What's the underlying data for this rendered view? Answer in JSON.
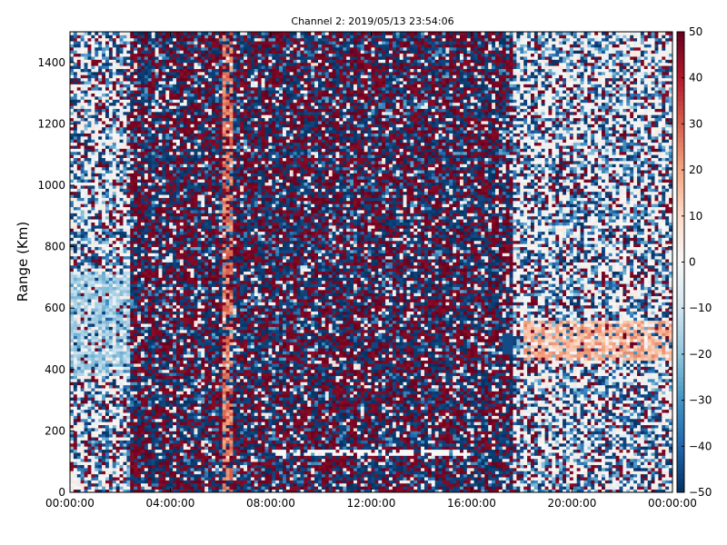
{
  "chart_data": {
    "type": "heatmap",
    "title": "Channel 2: 2019/05/13 23:54:06",
    "xlabel": "",
    "ylabel": "Range (Km)",
    "x_tick_labels": [
      "00:00:00",
      "04:00:00",
      "08:00:00",
      "12:00:00",
      "16:00:00",
      "20:00:00",
      "00:00:00"
    ],
    "x_tick_hours": [
      0,
      4,
      8,
      12,
      16,
      20,
      24
    ],
    "xlim_hours": [
      0,
      24
    ],
    "y_ticks": [
      0,
      200,
      400,
      600,
      800,
      1000,
      1200,
      1400
    ],
    "ylim": [
      0,
      1500
    ],
    "colorbar": {
      "ticks": [
        50,
        40,
        30,
        20,
        10,
        0,
        -10,
        -20,
        -30,
        -40,
        -50
      ],
      "range": [
        -50,
        50
      ],
      "colormap": "RdBu_r",
      "low_color": "#053061",
      "mid_color": "#f7f7f7",
      "high_color": "#67001f"
    },
    "features": [
      {
        "description": "speckled noise dominates 02:30–17:30 across all ranges"
      },
      {
        "description": "warm streak near 06:20",
        "x_hours": 6.3,
        "value_approx": 25
      },
      {
        "description": "lighter regions 00:00–02:30 and 17:30–24:00, mostly near zero"
      },
      {
        "description": "warm band ~450–550 Km between 18:00 and 24:00",
        "value_approx": 15
      },
      {
        "description": "thin near-zero line at ~130 Km between 08:00 and 16:00"
      }
    ]
  }
}
